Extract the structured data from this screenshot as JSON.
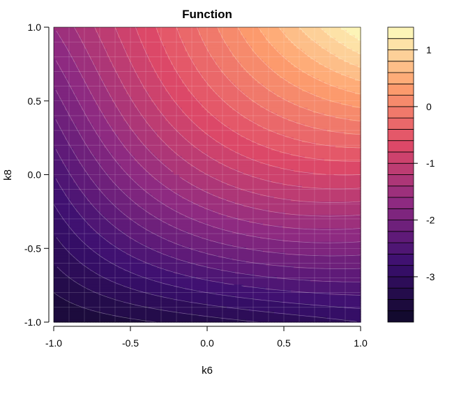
{
  "chart_data": {
    "type": "heatmap",
    "title": "Function",
    "xlabel": "k6",
    "ylabel": "k8",
    "xlim": [
      -1.0,
      1.0
    ],
    "ylim": [
      -1.0,
      1.0
    ],
    "x_ticks": [
      "-1.0",
      "-0.5",
      "0.0",
      "0.5",
      "1.0"
    ],
    "y_ticks": [
      "-1.0",
      "-0.5",
      "0.0",
      "0.5",
      "1.0"
    ],
    "colorbar": {
      "range": [
        -3.8,
        1.4
      ],
      "levels": 26,
      "ticks": [
        "1",
        "0",
        "-1",
        "-2",
        "-3"
      ],
      "tick_values": [
        1,
        0,
        -1,
        -2,
        -3
      ],
      "palette": [
        "#0f0a28",
        "#3b0f70",
        "#8c2981",
        "#de4968",
        "#fe9f6d",
        "#fcfdbf"
      ]
    },
    "grid": true,
    "corner_values": {
      "bottom_left": -3.6,
      "bottom_right": -3.0,
      "top_left": -1.6,
      "top_right": 1.4,
      "center": -1.2
    }
  }
}
